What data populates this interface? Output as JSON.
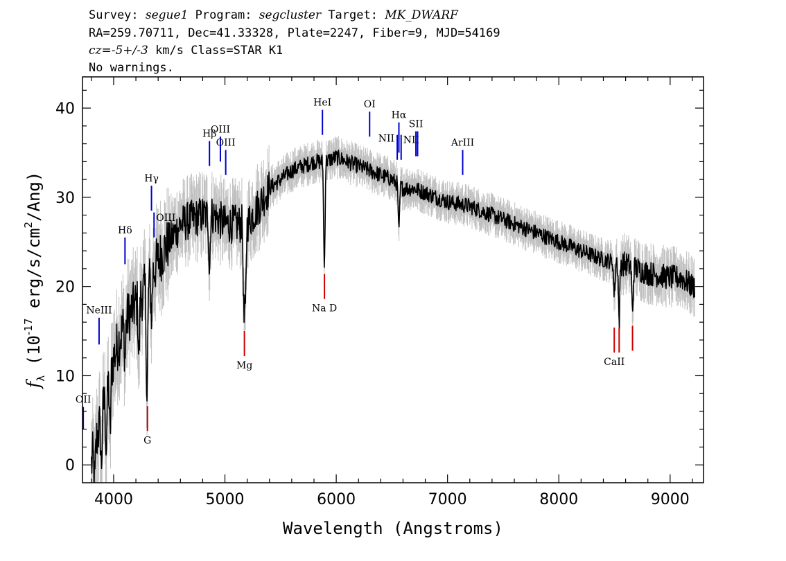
{
  "header": {
    "line1": [
      {
        "text": "Survey: ",
        "italic": false
      },
      {
        "text": "segue1",
        "italic": true
      },
      {
        "text": " Program: ",
        "italic": false
      },
      {
        "text": "segcluster",
        "italic": true
      },
      {
        "text": " Target: ",
        "italic": false
      },
      {
        "text": "MK_DWARF",
        "italic": true
      }
    ],
    "line2": "RA=259.70711, Dec=41.33328, Plate=2247, Fiber=9, MJD=54169",
    "line3": [
      {
        "text": "cz=-5+/-3",
        "italic": true
      },
      {
        "text": " km/s Class=STAR K1",
        "italic": false
      }
    ],
    "line4": "No warnings."
  },
  "colors": {
    "flux": "#000000",
    "error_band": "#c0c0c0",
    "emission_line": "#0000cc",
    "absorption_line": "#cc0000",
    "axes": "#000000"
  },
  "chart_data": {
    "type": "line",
    "xlabel": "Wavelength (Angstroms)",
    "ylabel": "f_λ (10^-17 erg/s/cm^2/Ang)",
    "ylabel_parts": {
      "symbol": "f",
      "subscript": "λ",
      "pre": " (10",
      "exp": "-17",
      "mid": " erg/s/cm",
      "exp2": "2",
      "post": "/Ang)"
    },
    "xlim": [
      3720,
      9300
    ],
    "ylim": [
      -2,
      43.5
    ],
    "xticks": [
      4000,
      5000,
      6000,
      7000,
      8000,
      9000
    ],
    "yticks": [
      0,
      10,
      20,
      30,
      40
    ],
    "grid": false,
    "continuum_nodes": {
      "x": [
        3800,
        3850,
        3900,
        3950,
        4000,
        4050,
        4100,
        4200,
        4300,
        4400,
        4500,
        4600,
        4700,
        4800,
        4900,
        5000,
        5100,
        5200,
        5300,
        5400,
        5500,
        5600,
        5700,
        5800,
        5900,
        6000,
        6100,
        6200,
        6300,
        6400,
        6500,
        6600,
        6700,
        6800,
        7000,
        7200,
        7400,
        7600,
        7800,
        8000,
        8200,
        8400,
        8600,
        8800,
        9000,
        9100,
        9200
      ],
      "y": [
        0,
        3,
        6,
        9,
        12,
        14,
        16,
        18,
        20,
        23,
        25,
        27,
        27.5,
        28,
        28,
        27,
        27,
        27,
        29,
        31,
        32,
        33,
        33.5,
        34,
        34,
        34.5,
        34,
        33.5,
        33,
        32.5,
        32,
        31,
        31,
        30.5,
        29.5,
        29,
        28,
        27,
        26,
        25,
        24,
        23,
        22.5,
        21.5,
        21,
        21,
        20
      ]
    },
    "absorption_dips": [
      {
        "x": 3830,
        "y": -2
      },
      {
        "x": 3890,
        "y": 0
      },
      {
        "x": 3934,
        "y": 2
      },
      {
        "x": 3968,
        "y": 3
      },
      {
        "x": 4102,
        "y": 12
      },
      {
        "x": 4227,
        "y": 12
      },
      {
        "x": 4300,
        "y": 7
      },
      {
        "x": 4340,
        "y": 17
      },
      {
        "x": 4861,
        "y": 22
      },
      {
        "x": 5170,
        "y": 17
      },
      {
        "x": 5184,
        "y": 17.5
      },
      {
        "x": 5893,
        "y": 22
      },
      {
        "x": 6563,
        "y": 26
      },
      {
        "x": 8498,
        "y": 19
      },
      {
        "x": 8542,
        "y": 16
      },
      {
        "x": 8662,
        "y": 17
      }
    ],
    "spectral_lines": [
      {
        "label": "NeIII",
        "x": 3869,
        "y": 13.5,
        "len": 3,
        "kind": "emission",
        "label_pos": "above"
      },
      {
        "label": "OII",
        "x": 3727,
        "y": 4,
        "len": 2.5,
        "kind": "emission",
        "label_pos": "above"
      },
      {
        "label": "Hδ",
        "x": 4102,
        "y": 22.5,
        "len": 3,
        "kind": "emission",
        "label_pos": "above"
      },
      {
        "label": "Hγ",
        "x": 4340,
        "y": 28.5,
        "len": 2.8,
        "kind": "emission",
        "label_pos": "above"
      },
      {
        "label": "OIII",
        "x": 4363,
        "y": 25.5,
        "len": 2.8,
        "kind": "emission",
        "label_pos": "right"
      },
      {
        "label": "Hβ",
        "x": 4861,
        "y": 33.5,
        "len": 2.8,
        "kind": "emission",
        "label_pos": "above"
      },
      {
        "label": "OIII",
        "x": 4959,
        "y": 34,
        "len": 2.8,
        "kind": "emission",
        "label_pos": "above"
      },
      {
        "label": "OIII",
        "x": 5007,
        "y": 32.5,
        "len": 2.8,
        "kind": "emission",
        "label_pos": "above"
      },
      {
        "label": "HeI",
        "x": 5876,
        "y": 37,
        "len": 2.8,
        "kind": "emission",
        "label_pos": "above"
      },
      {
        "label": "OI",
        "x": 6300,
        "y": 36.8,
        "len": 2.8,
        "kind": "emission",
        "label_pos": "above"
      },
      {
        "label": "NII",
        "x": 6548,
        "y": 34.2,
        "len": 2.8,
        "kind": "emission",
        "label_pos": "left"
      },
      {
        "label": "Hα",
        "x": 6563,
        "y": 35,
        "len": 3.4,
        "kind": "emission",
        "label_pos": "above"
      },
      {
        "label": "NII",
        "x": 6583,
        "y": 34.2,
        "len": 2.8,
        "kind": "emission",
        "label_pos": "right"
      },
      {
        "label": "SII",
        "x": 6716,
        "y": 34.6,
        "len": 2.8,
        "kind": "emission",
        "label_pos": "above"
      },
      {
        "label": "SII",
        "x": 6731,
        "y": 34.6,
        "len": 2.8,
        "kind": "emission",
        "label_pos": "none"
      },
      {
        "label": "ArIII",
        "x": 7136,
        "y": 32.5,
        "len": 2.8,
        "kind": "emission",
        "label_pos": "above"
      },
      {
        "label": "G",
        "x": 4304,
        "y": 3.8,
        "len": 2.8,
        "kind": "absorption",
        "label_pos": "below"
      },
      {
        "label": "Mg",
        "x": 5175,
        "y": 12.2,
        "len": 2.8,
        "kind": "absorption",
        "label_pos": "below"
      },
      {
        "label": "Na D",
        "x": 5894,
        "y": 18.6,
        "len": 2.8,
        "kind": "absorption",
        "label_pos": "below"
      },
      {
        "label": "CaII",
        "x": 8498,
        "y": 12.6,
        "len": 2.8,
        "kind": "absorption",
        "label_pos": "below"
      },
      {
        "label": "",
        "x": 8542,
        "y": 12.6,
        "len": 2.8,
        "kind": "absorption",
        "label_pos": "none"
      },
      {
        "label": "",
        "x": 8662,
        "y": 12.8,
        "len": 2.8,
        "kind": "absorption",
        "label_pos": "none"
      }
    ]
  }
}
